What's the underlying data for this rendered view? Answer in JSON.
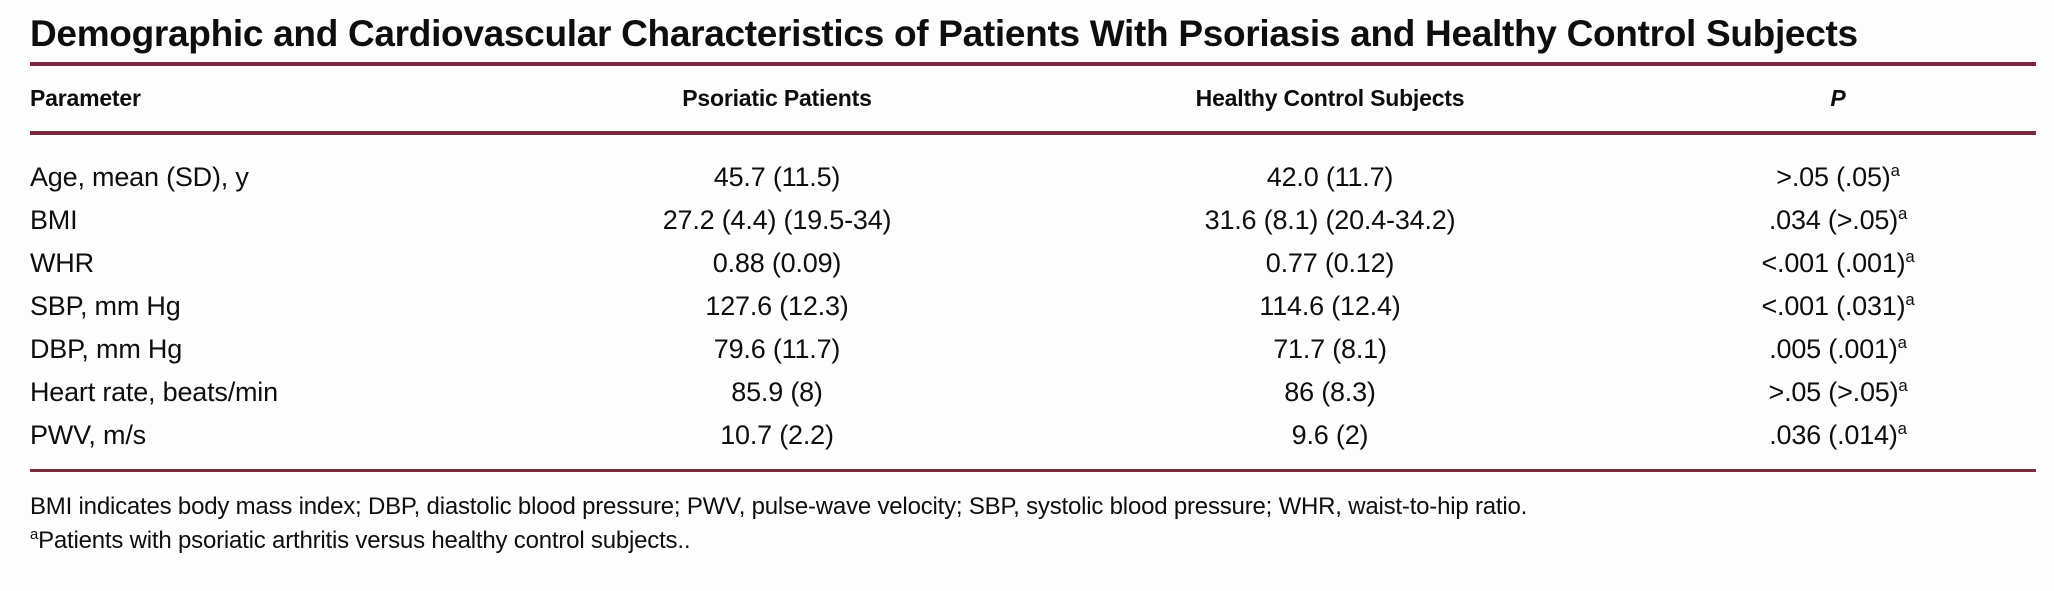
{
  "title": "Demographic and Cardiovascular Characteristics of Patients With Psoriasis and Healthy Control Subjects",
  "colors": {
    "rule": "#7b293e"
  },
  "table": {
    "columns": [
      "Parameter",
      "Psoriatic Patients",
      "Healthy Control Subjects",
      "P"
    ],
    "rows": [
      {
        "parameter": "Age, mean (SD), y",
        "psoriatic": "45.7 (11.5)",
        "control": "42.0 (11.7)",
        "p": ">.05 (.05)",
        "p_sup": "a"
      },
      {
        "parameter": "BMI",
        "psoriatic": "27.2 (4.4) (19.5-34)",
        "control": "31.6 (8.1) (20.4-34.2)",
        "p": ".034 (>.05)",
        "p_sup": "a"
      },
      {
        "parameter": "WHR",
        "psoriatic": "0.88 (0.09)",
        "control": "0.77 (0.12)",
        "p": "<.001 (.001)",
        "p_sup": "a"
      },
      {
        "parameter": "SBP, mm Hg",
        "psoriatic": "127.6 (12.3)",
        "control": "114.6 (12.4)",
        "p": "<.001 (.031)",
        "p_sup": "a"
      },
      {
        "parameter": "DBP, mm Hg",
        "psoriatic": "79.6 (11.7)",
        "control": "71.7 (8.1)",
        "p": ".005 (.001)",
        "p_sup": "a"
      },
      {
        "parameter": "Heart rate, beats/min",
        "psoriatic": "85.9 (8)",
        "control": "86 (8.3)",
        "p": ">.05 (>.05)",
        "p_sup": "a"
      },
      {
        "parameter": "PWV, m/s",
        "psoriatic": "10.7 (2.2)",
        "control": "9.6 (2)",
        "p": ".036 (.014)",
        "p_sup": "a"
      }
    ]
  },
  "footnotes": {
    "abbreviations": "BMI indicates body mass index; DBP, diastolic blood pressure; PWV, pulse-wave velocity; SBP, systolic blood pressure; WHR, waist-to-hip ratio.",
    "note_sup": "a",
    "note": "Patients with psoriatic arthritis versus healthy control subjects.."
  }
}
